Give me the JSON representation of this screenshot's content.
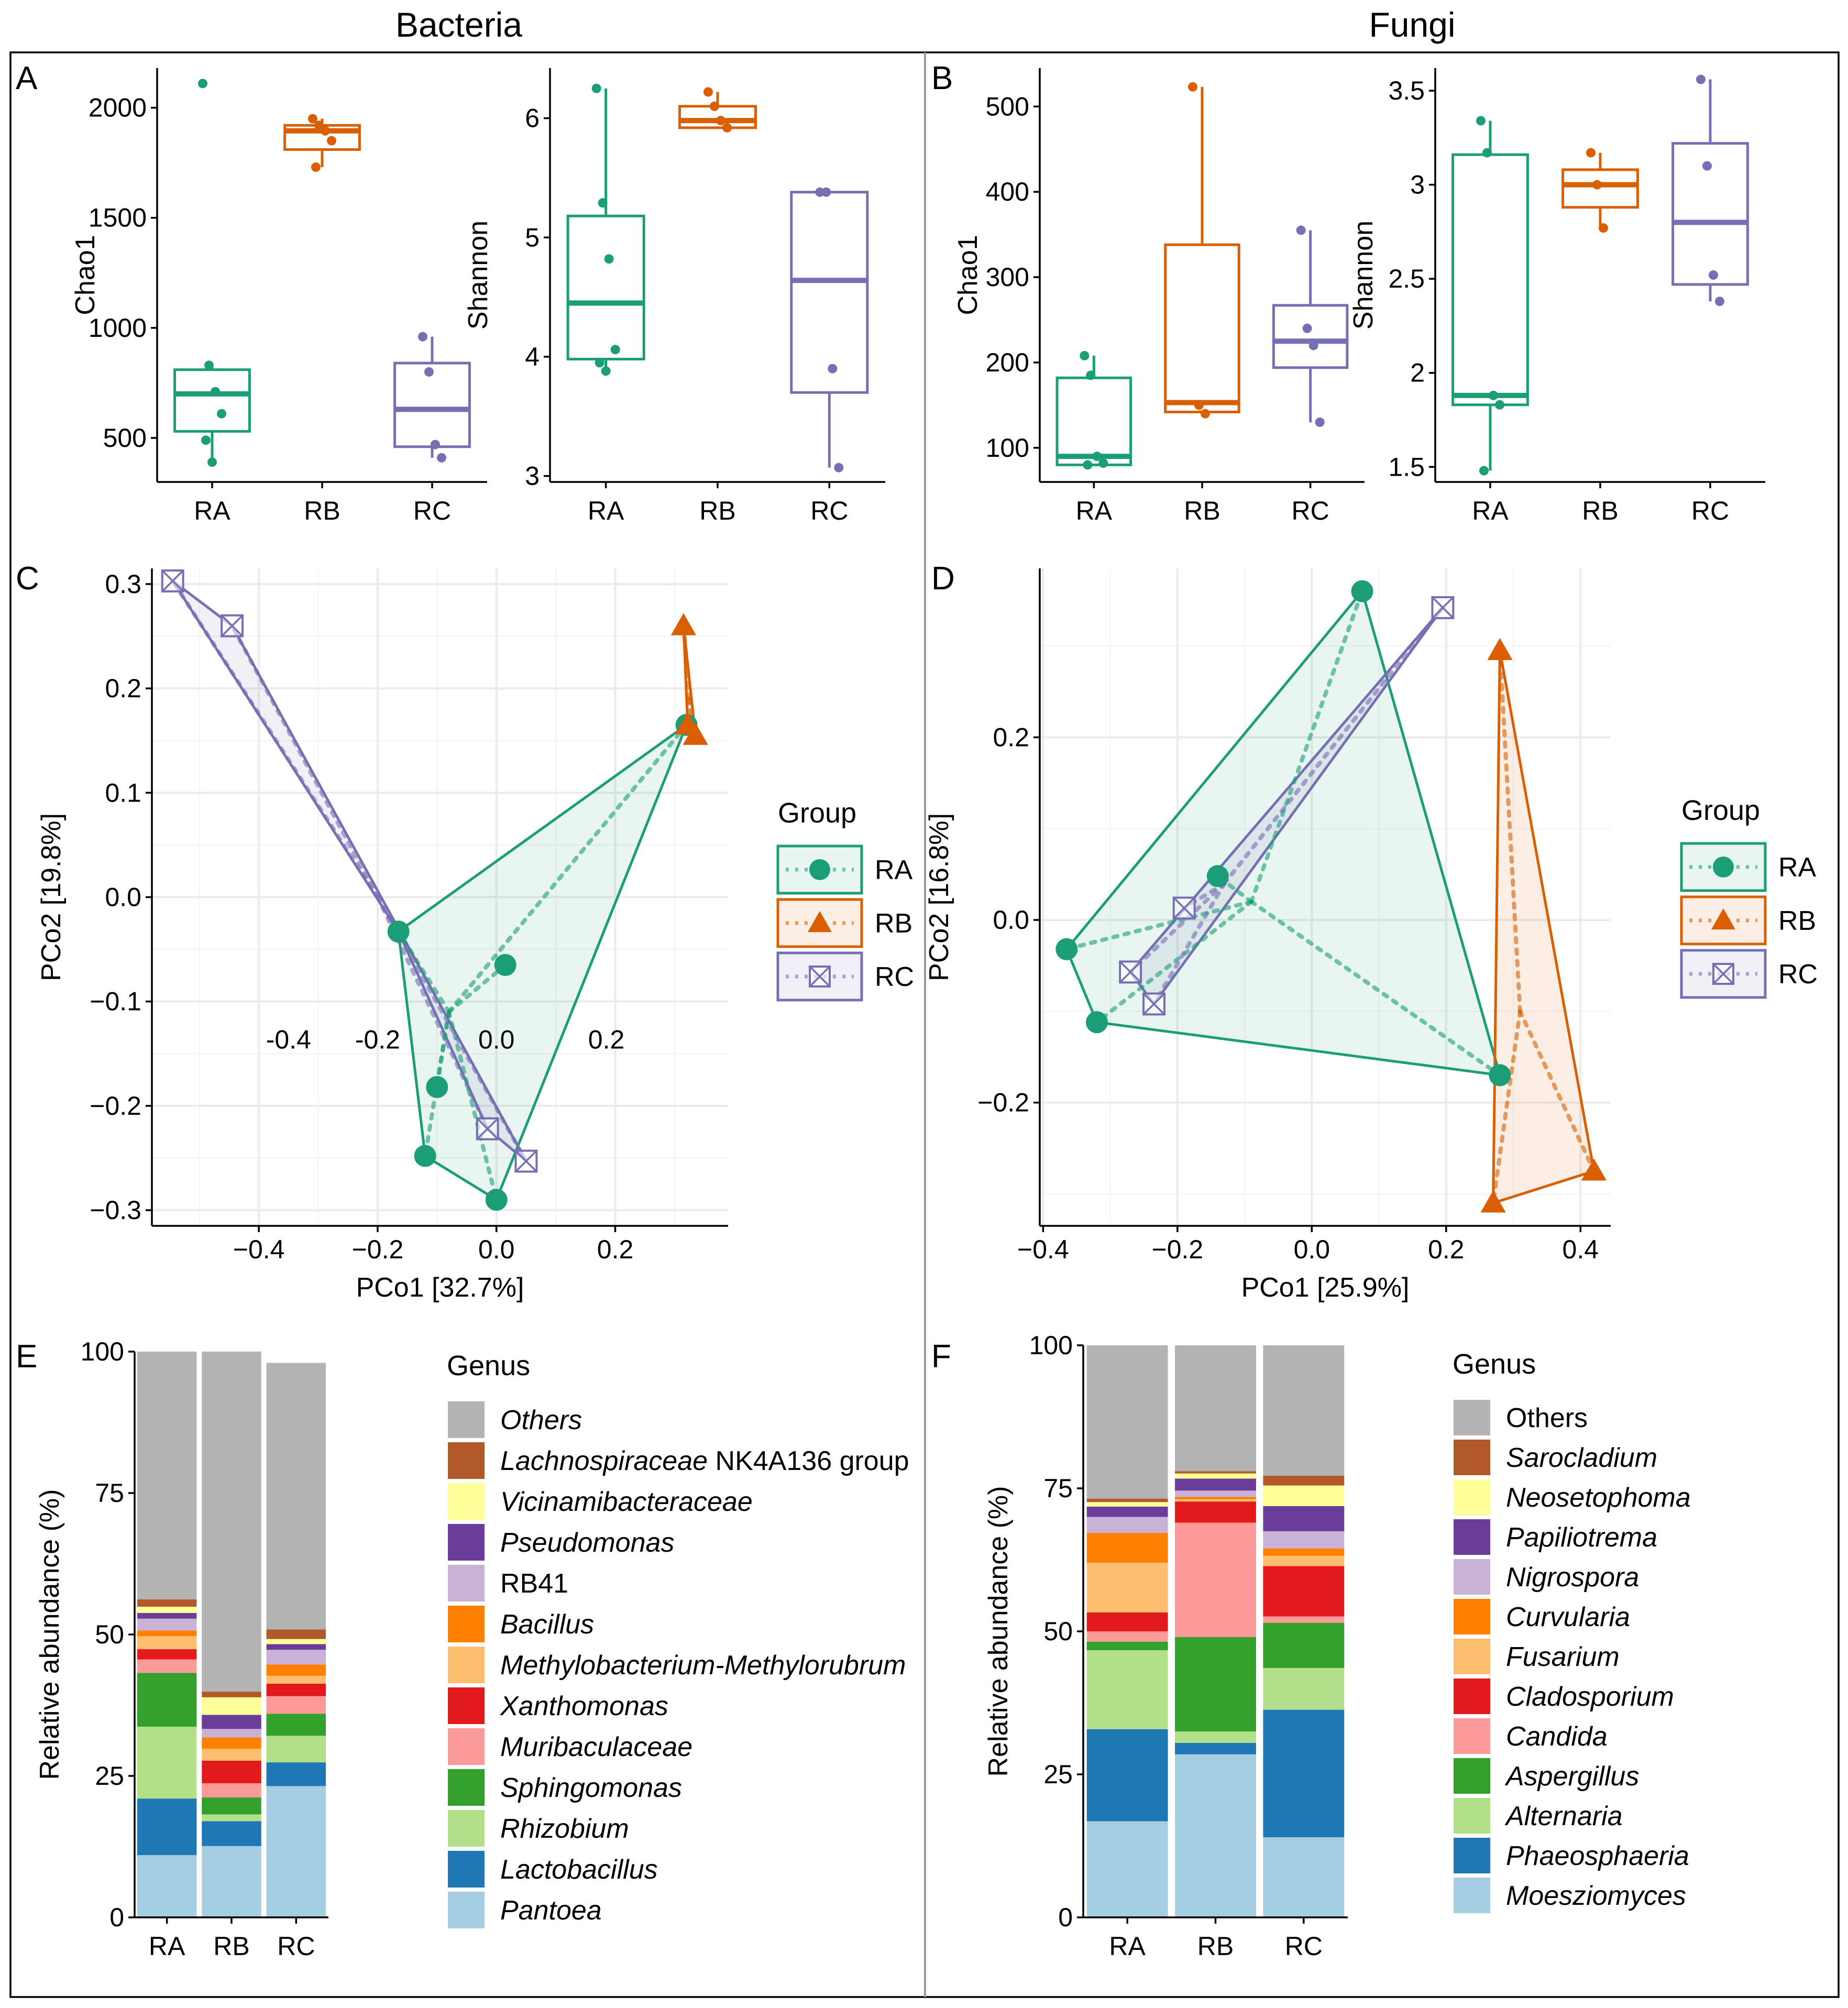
{
  "titles": {
    "bacteria": "Bacteria",
    "fungi": "Fungi"
  },
  "panel_labels": {
    "A": "A",
    "B": "B",
    "C": "C",
    "D": "D",
    "E": "E",
    "F": "F"
  },
  "colors": {
    "RA": "#1b9e77",
    "RB": "#d95f02",
    "RC": "#7570b3"
  },
  "chart_data": [
    {
      "id": "A1",
      "type": "box",
      "title": "",
      "ylabel": "Chao1",
      "xlabel": "",
      "categories": [
        "RA",
        "RB",
        "RC"
      ],
      "ylim": [
        300,
        2180
      ],
      "yticks": [
        500,
        1000,
        1500,
        2000
      ],
      "boxes": [
        {
          "group": "RA",
          "min": 400,
          "q1": 530,
          "median": 700,
          "q3": 810,
          "max": 830,
          "points": [
            2110,
            830,
            710,
            610,
            490,
            390
          ]
        },
        {
          "group": "RB",
          "min": 1730,
          "q1": 1810,
          "median": 1895,
          "q3": 1920,
          "max": 1950,
          "points": [
            1950,
            1920,
            1895,
            1850,
            1730
          ]
        },
        {
          "group": "RC",
          "min": 410,
          "q1": 460,
          "median": 630,
          "q3": 840,
          "max": 960,
          "points": [
            960,
            800,
            470,
            410
          ]
        }
      ]
    },
    {
      "id": "A2",
      "type": "box",
      "title": "",
      "ylabel": "Shannon",
      "xlabel": "",
      "categories": [
        "RA",
        "RB",
        "RC"
      ],
      "ylim": [
        2.95,
        6.42
      ],
      "yticks": [
        3,
        4,
        5,
        6
      ],
      "boxes": [
        {
          "group": "RA",
          "min": 3.88,
          "q1": 3.98,
          "median": 4.45,
          "q3": 5.18,
          "max": 6.25,
          "points": [
            6.25,
            5.29,
            4.82,
            4.06,
            3.95,
            3.88
          ]
        },
        {
          "group": "RB",
          "min": 5.92,
          "q1": 5.92,
          "median": 5.98,
          "q3": 6.1,
          "max": 6.22,
          "points": [
            6.22,
            6.1,
            5.98,
            5.92
          ]
        },
        {
          "group": "RC",
          "min": 3.07,
          "q1": 3.7,
          "median": 4.64,
          "q3": 5.38,
          "max": 5.38,
          "points": [
            5.38,
            5.38,
            3.9,
            3.07
          ]
        }
      ]
    },
    {
      "id": "B1",
      "type": "box",
      "title": "",
      "ylabel": "Chao1",
      "xlabel": "",
      "categories": [
        "RA",
        "RB",
        "RC"
      ],
      "ylim": [
        60,
        545
      ],
      "yticks": [
        100,
        200,
        300,
        400,
        500
      ],
      "boxes": [
        {
          "group": "RA",
          "min": 80,
          "q1": 80,
          "median": 90,
          "q3": 182,
          "max": 208,
          "points": [
            208,
            185,
            90,
            82,
            80
          ]
        },
        {
          "group": "RB",
          "min": 140,
          "q1": 142,
          "median": 153,
          "q3": 338,
          "max": 523,
          "points": [
            523,
            150,
            140
          ]
        },
        {
          "group": "RC",
          "min": 130,
          "q1": 194,
          "median": 225,
          "q3": 267,
          "max": 355,
          "points": [
            355,
            240,
            220,
            130
          ]
        }
      ]
    },
    {
      "id": "B2",
      "type": "box",
      "title": "",
      "ylabel": "Shannon",
      "xlabel": "",
      "categories": [
        "RA",
        "RB",
        "RC"
      ],
      "ylim": [
        1.42,
        3.62
      ],
      "yticks": [
        1.5,
        2.0,
        2.5,
        3.0,
        3.5
      ],
      "boxes": [
        {
          "group": "RA",
          "min": 1.48,
          "q1": 1.83,
          "median": 1.88,
          "q3": 3.16,
          "max": 3.34,
          "points": [
            3.34,
            3.17,
            1.88,
            1.83,
            1.48
          ]
        },
        {
          "group": "RB",
          "min": 2.76,
          "q1": 2.88,
          "median": 3.0,
          "q3": 3.08,
          "max": 3.17,
          "points": [
            3.17,
            3.0,
            2.77
          ]
        },
        {
          "group": "RC",
          "min": 2.38,
          "q1": 2.47,
          "median": 2.8,
          "q3": 3.22,
          "max": 3.56,
          "points": [
            3.56,
            3.1,
            2.52,
            2.38
          ]
        }
      ]
    },
    {
      "id": "C",
      "type": "scatter",
      "title": "",
      "xlabel": "PCo1 [32.7%]",
      "ylabel": "PCo2 [19.8%]",
      "xlim": [
        -0.58,
        0.39
      ],
      "ylim": [
        -0.315,
        0.315
      ],
      "xticks": [
        -0.4,
        -0.2,
        0.0,
        0.2
      ],
      "yticks": [
        -0.3,
        -0.2,
        -0.1,
        0.0,
        0.1,
        0.2,
        0.3
      ],
      "inner_labels": [
        {
          "text": "-0.4",
          "x": -0.35,
          "y": -0.145
        },
        {
          "text": "-0.2",
          "x": -0.2,
          "y": -0.145
        },
        {
          "text": "0.0",
          "x": -0.0,
          "y": -0.145
        },
        {
          "text": "0.2",
          "x": 0.185,
          "y": -0.145
        }
      ],
      "legend": {
        "title": "Group",
        "items": [
          "RA",
          "RB",
          "RC"
        ]
      },
      "series": [
        {
          "name": "RA",
          "marker": "circle",
          "centroid": [
            -0.08,
            -0.11
          ],
          "hull": [
            [
              0.32,
              0.165
            ],
            [
              -0.165,
              -0.033
            ],
            [
              -0.12,
              -0.248
            ],
            [
              0.0,
              -0.29
            ]
          ],
          "points": [
            [
              0.32,
              0.165
            ],
            [
              -0.165,
              -0.033
            ],
            [
              0.015,
              -0.065
            ],
            [
              -0.1,
              -0.182
            ],
            [
              -0.12,
              -0.248
            ],
            [
              0.0,
              -0.29
            ]
          ]
        },
        {
          "name": "RB",
          "marker": "triangle",
          "centroid": [
            0.325,
            0.19
          ],
          "hull": [
            [
              0.315,
              0.26
            ],
            [
              0.335,
              0.155
            ],
            [
              0.322,
              0.165
            ]
          ],
          "points": [
            [
              0.315,
              0.26
            ],
            [
              0.335,
              0.155
            ],
            [
              0.322,
              0.165
            ]
          ]
        },
        {
          "name": "RC",
          "marker": "xsquare",
          "centroid": [
            -0.2,
            0.0
          ],
          "hull": [
            [
              -0.545,
              0.303
            ],
            [
              -0.445,
              0.26
            ],
            [
              0.05,
              -0.253
            ],
            [
              -0.015,
              -0.222
            ],
            [
              -0.165,
              -0.033
            ]
          ],
          "points": [
            [
              -0.545,
              0.303
            ],
            [
              -0.445,
              0.26
            ],
            [
              0.05,
              -0.253
            ],
            [
              -0.015,
              -0.222
            ]
          ]
        }
      ]
    },
    {
      "id": "D",
      "type": "scatter",
      "title": "",
      "xlabel": "PCo1 [25.9%]",
      "ylabel": "PCo2 [16.8%]",
      "xlim": [
        -0.405,
        0.445
      ],
      "ylim": [
        -0.335,
        0.385
      ],
      "xticks": [
        -0.4,
        -0.2,
        0.0,
        0.2,
        0.4
      ],
      "yticks": [
        -0.2,
        0.0,
        0.2
      ],
      "inner_labels": [],
      "legend": {
        "title": "Group",
        "items": [
          "RA",
          "RB",
          "RC"
        ]
      },
      "series": [
        {
          "name": "RA",
          "marker": "circle",
          "centroid": [
            -0.09,
            0.02
          ],
          "hull": [
            [
              0.075,
              0.36
            ],
            [
              0.28,
              -0.17
            ],
            [
              -0.32,
              -0.112
            ],
            [
              -0.365,
              -0.032
            ]
          ],
          "points": [
            [
              0.075,
              0.36
            ],
            [
              -0.14,
              0.048
            ],
            [
              -0.365,
              -0.032
            ],
            [
              -0.32,
              -0.112
            ],
            [
              0.28,
              -0.17
            ]
          ]
        },
        {
          "name": "RB",
          "marker": "triangle",
          "centroid": [
            0.31,
            -0.1
          ],
          "hull": [
            [
              0.28,
              0.295
            ],
            [
              0.42,
              -0.275
            ],
            [
              0.27,
              -0.31
            ]
          ],
          "points": [
            [
              0.28,
              0.295
            ],
            [
              0.42,
              -0.275
            ],
            [
              0.27,
              -0.31
            ]
          ]
        },
        {
          "name": "RC",
          "marker": "xsquare",
          "centroid": [
            -0.13,
            0.04
          ],
          "hull": [
            [
              0.195,
              0.342
            ],
            [
              -0.235,
              -0.092
            ],
            [
              -0.27,
              -0.057
            ]
          ],
          "points": [
            [
              0.195,
              0.342
            ],
            [
              -0.19,
              0.013
            ],
            [
              -0.27,
              -0.057
            ],
            [
              -0.235,
              -0.092
            ]
          ]
        }
      ]
    },
    {
      "id": "E",
      "type": "stacked_bar",
      "title": "",
      "ylabel": "Relative abundance (%)",
      "xlabel": "",
      "categories": [
        "RA",
        "RB",
        "RC"
      ],
      "ylim": [
        0,
        100
      ],
      "yticks": [
        0,
        25,
        50,
        75,
        100
      ],
      "legend_title": "Genus",
      "legend_order": [
        "Others",
        "Lachnospiraceae NK4A136 group",
        "Vicinamibacteraceae",
        "Pseudomonas",
        "RB41",
        "Bacillus",
        "Methylobacterium-Methylorubrum",
        "Xanthomonas",
        "Muribaculaceae",
        "Sphingomonas",
        "Rhizobium",
        "Lactobacillus",
        "Pantoea"
      ],
      "legend_italic": [
        true,
        "partial",
        true,
        true,
        false,
        true,
        true,
        true,
        true,
        true,
        true,
        true,
        true
      ],
      "series": [
        {
          "name": "Pantoea",
          "color": "#a6cee3",
          "values": [
            11,
            12.6,
            23.2
          ]
        },
        {
          "name": "Lactobacillus",
          "color": "#1f78b4",
          "values": [
            10,
            4.4,
            4.2
          ]
        },
        {
          "name": "Rhizobium",
          "color": "#b2df8a",
          "values": [
            12.7,
            1.2,
            4.7
          ]
        },
        {
          "name": "Sphingomonas",
          "color": "#33a02c",
          "values": [
            9.5,
            3.0,
            3.9
          ]
        },
        {
          "name": "Muribaculaceae",
          "color": "#fb9a99",
          "values": [
            2.4,
            2.5,
            3.1
          ]
        },
        {
          "name": "Xanthomonas",
          "color": "#e31a1c",
          "values": [
            1.8,
            4.0,
            2.2
          ]
        },
        {
          "name": "Methylobacterium-Methylorubrum",
          "color": "#fdbf6f",
          "values": [
            2.3,
            2.1,
            1.4
          ]
        },
        {
          "name": "Bacillus",
          "color": "#ff7f00",
          "values": [
            1.0,
            2.0,
            2.0
          ]
        },
        {
          "name": "RB41",
          "color": "#cab2d6",
          "values": [
            2.1,
            1.5,
            2.6
          ]
        },
        {
          "name": "Pseudomonas",
          "color": "#6a3d9a",
          "values": [
            1.0,
            2.5,
            1.0
          ]
        },
        {
          "name": "Vicinamibacteraceae",
          "color": "#ffff99",
          "values": [
            1.1,
            3.1,
            0.9
          ]
        },
        {
          "name": "Lachnospiraceae NK4A136 group",
          "color": "#b15928",
          "values": [
            1.3,
            1.0,
            1.7
          ]
        },
        {
          "name": "Others",
          "color": "#b3b3b3",
          "values": [
            43.8,
            60.1,
            47.1
          ]
        }
      ]
    },
    {
      "id": "F",
      "type": "stacked_bar",
      "title": "",
      "ylabel": "Relative abundance (%)",
      "xlabel": "",
      "categories": [
        "RA",
        "RB",
        "RC"
      ],
      "ylim": [
        0,
        100
      ],
      "yticks": [
        0,
        25,
        50,
        75,
        100
      ],
      "legend_title": "Genus",
      "legend_order": [
        "Others",
        "Sarocladium",
        "Neosetophoma",
        "Papiliotrema",
        "Nigrospora",
        "Curvularia",
        "Fusarium",
        "Cladosporium",
        "Candida",
        "Aspergillus",
        "Alternaria",
        "Phaeosphaeria",
        "Moesziomyces"
      ],
      "legend_italic": [
        false,
        true,
        true,
        true,
        true,
        true,
        true,
        true,
        true,
        true,
        true,
        true,
        true
      ],
      "series": [
        {
          "name": "Moesziomyces",
          "color": "#a6cee3",
          "values": [
            16.8,
            28.5,
            14.0
          ]
        },
        {
          "name": "Phaeosphaeria",
          "color": "#1f78b4",
          "values": [
            16.1,
            2.0,
            22.3
          ]
        },
        {
          "name": "Alternaria",
          "color": "#b2df8a",
          "values": [
            13.8,
            2.0,
            7.3
          ]
        },
        {
          "name": "Aspergillus",
          "color": "#33a02c",
          "values": [
            1.5,
            16.5,
            7.9
          ]
        },
        {
          "name": "Candida",
          "color": "#fb9a99",
          "values": [
            1.8,
            20.0,
            1.1
          ]
        },
        {
          "name": "Cladosporium",
          "color": "#e31a1c",
          "values": [
            3.3,
            3.7,
            8.8
          ]
        },
        {
          "name": "Fusarium",
          "color": "#fdbf6f",
          "values": [
            8.7,
            0.4,
            1.8
          ]
        },
        {
          "name": "Curvularia",
          "color": "#ff7f00",
          "values": [
            5.2,
            0.4,
            1.3
          ]
        },
        {
          "name": "Nigrospora",
          "color": "#cab2d6",
          "values": [
            2.8,
            1.1,
            3.0
          ]
        },
        {
          "name": "Papiliotrema",
          "color": "#6a3d9a",
          "values": [
            1.8,
            2.1,
            4.4
          ]
        },
        {
          "name": "Neosetophoma",
          "color": "#ffff99",
          "values": [
            0.8,
            0.9,
            3.6
          ]
        },
        {
          "name": "Sarocladium",
          "color": "#b15928",
          "values": [
            0.6,
            0.4,
            1.7
          ]
        },
        {
          "name": "Others",
          "color": "#b3b3b3",
          "values": [
            26.8,
            22.0,
            22.8
          ]
        }
      ]
    }
  ]
}
